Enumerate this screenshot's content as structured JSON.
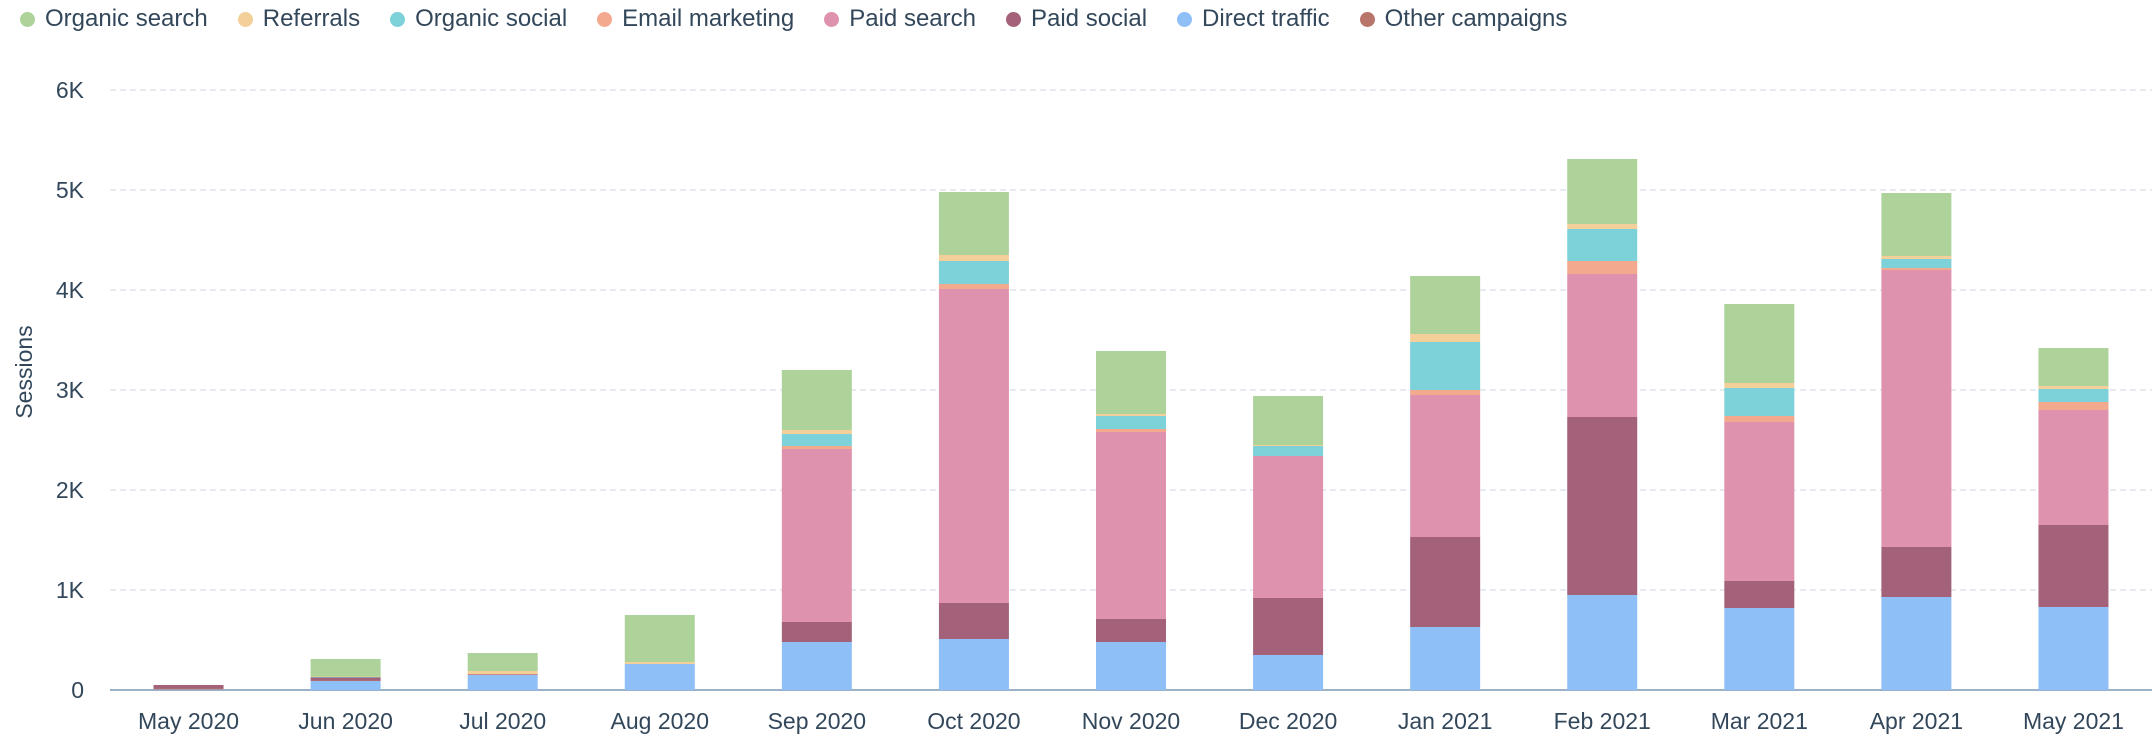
{
  "chart_data": {
    "type": "bar",
    "stacked": true,
    "title": "",
    "xlabel": "",
    "ylabel": "Sessions",
    "ylim": [
      0,
      6000
    ],
    "y_ticks": [
      0,
      1000,
      2000,
      3000,
      4000,
      5000,
      6000
    ],
    "y_tick_labels": [
      "0",
      "1K",
      "2K",
      "3K",
      "4K",
      "5K",
      "6K"
    ],
    "grid": true,
    "legend_position": "top-left",
    "categories": [
      "May 2020",
      "Jun 2020",
      "Jul 2020",
      "Aug 2020",
      "Sep 2020",
      "Oct 2020",
      "Nov 2020",
      "Dec 2020",
      "Jan 2021",
      "Feb 2021",
      "Mar 2021",
      "Apr 2021",
      "May 2021"
    ],
    "series": [
      {
        "name": "Direct traffic",
        "color": "#8fbff7",
        "values": [
          5,
          90,
          150,
          260,
          480,
          510,
          480,
          350,
          630,
          950,
          820,
          930,
          830
        ]
      },
      {
        "name": "Other campaigns",
        "color": "#b8756a",
        "values": [
          10,
          5,
          0,
          0,
          0,
          0,
          0,
          0,
          0,
          0,
          0,
          0,
          0
        ]
      },
      {
        "name": "Paid social",
        "color": "#a4627a",
        "values": [
          35,
          30,
          5,
          0,
          200,
          360,
          230,
          570,
          900,
          1780,
          270,
          500,
          820
        ]
      },
      {
        "name": "Paid search",
        "color": "#de92ad",
        "values": [
          0,
          0,
          0,
          0,
          1730,
          3140,
          1870,
          1420,
          1420,
          1430,
          1590,
          2770,
          1150
        ]
      },
      {
        "name": "Email marketing",
        "color": "#f2a98e",
        "values": [
          0,
          0,
          5,
          0,
          30,
          50,
          30,
          0,
          50,
          130,
          60,
          20,
          80
        ]
      },
      {
        "name": "Organic social",
        "color": "#7dd1d8",
        "values": [
          0,
          5,
          0,
          0,
          120,
          230,
          130,
          100,
          480,
          320,
          280,
          90,
          130
        ]
      },
      {
        "name": "Referrals",
        "color": "#f3cf9a",
        "values": [
          0,
          5,
          30,
          20,
          40,
          60,
          20,
          10,
          80,
          50,
          50,
          30,
          30
        ]
      },
      {
        "name": "Organic search",
        "color": "#add39b",
        "values": [
          0,
          175,
          180,
          470,
          600,
          630,
          630,
          490,
          580,
          650,
          790,
          630,
          380
        ]
      }
    ]
  },
  "legend": [
    {
      "label": "Organic search",
      "color": "#add39b"
    },
    {
      "label": "Referrals",
      "color": "#f3cf9a"
    },
    {
      "label": "Organic social",
      "color": "#7dd1d8"
    },
    {
      "label": "Email marketing",
      "color": "#f2a98e"
    },
    {
      "label": "Paid search",
      "color": "#de92ad"
    },
    {
      "label": "Paid social",
      "color": "#a4627a"
    },
    {
      "label": "Direct traffic",
      "color": "#8fbff7"
    },
    {
      "label": "Other campaigns",
      "color": "#b8756a"
    }
  ]
}
